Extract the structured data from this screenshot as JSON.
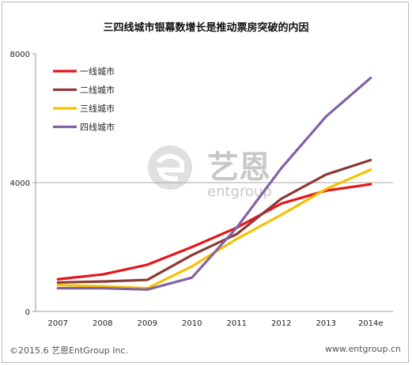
{
  "footer": {
    "copyright": "©2015.6  艺恩EntGroup Inc.",
    "website": "www.entgroup.cn"
  },
  "watermark": {
    "cn": "艺恩",
    "en": "entgroup"
  },
  "chart_data": {
    "type": "line",
    "title": "三四线城市银幕数增长是推动票房突破的内因",
    "xlabel": "",
    "ylabel": "",
    "categories": [
      "2007",
      "2008",
      "2009",
      "2010",
      "2011",
      "2012",
      "2013",
      "2014e"
    ],
    "ylim": [
      0,
      8000
    ],
    "yticks": [
      0,
      4000,
      8000
    ],
    "grid": "y at 4000",
    "legend_position": "top-left",
    "series": [
      {
        "name": "一线城市",
        "color": "#e8141b",
        "values": [
          1000,
          1150,
          1450,
          2000,
          2600,
          3350,
          3750,
          3950
        ]
      },
      {
        "name": "二线城市",
        "color": "#8b3a36",
        "values": [
          900,
          930,
          980,
          1750,
          2400,
          3500,
          4250,
          4700
        ]
      },
      {
        "name": "三线城市",
        "color": "#f7c000",
        "values": [
          820,
          780,
          720,
          1400,
          2250,
          3000,
          3800,
          4400
        ]
      },
      {
        "name": "四线城市",
        "color": "#8064a2",
        "values": [
          720,
          720,
          680,
          1050,
          2600,
          4450,
          6050,
          7250
        ]
      }
    ]
  }
}
